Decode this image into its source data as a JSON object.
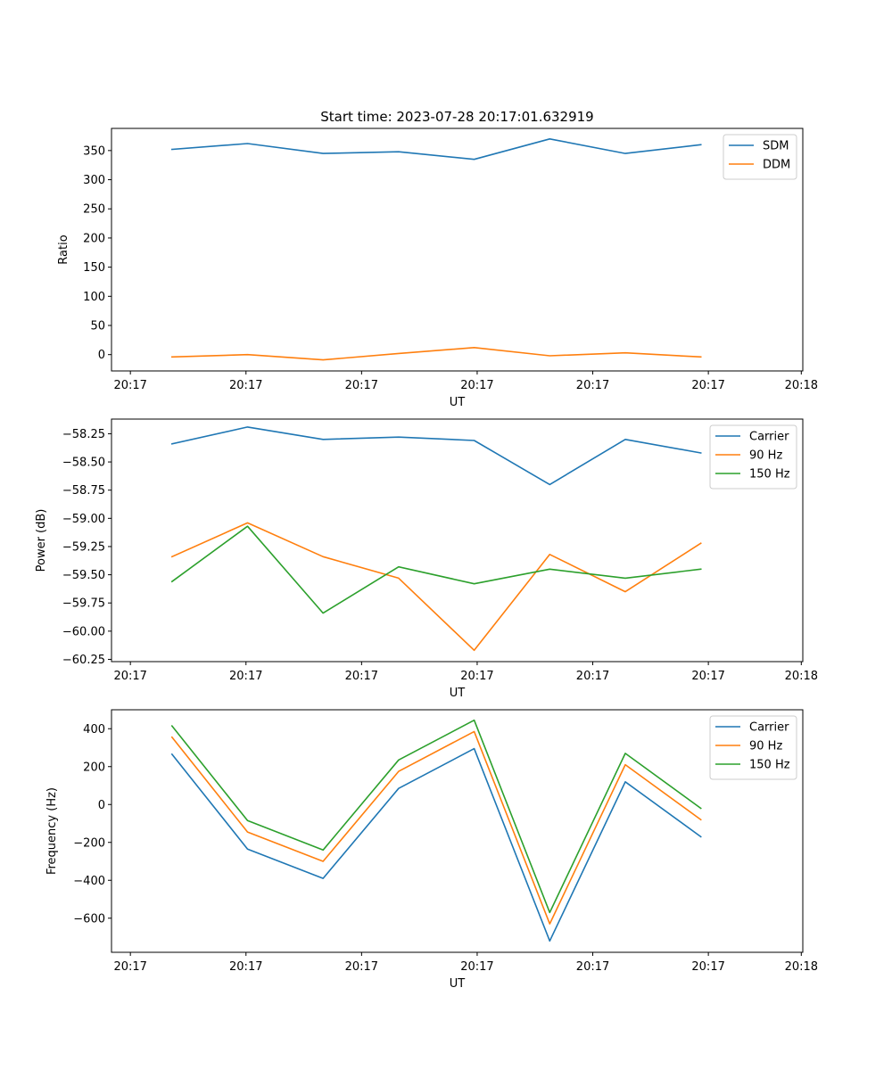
{
  "title": "Start time: 2023-07-28 20:17:01.632919",
  "colors": {
    "blue": "#1f77b4",
    "orange": "#ff7f0e",
    "green": "#2ca02c"
  },
  "chart_data": [
    {
      "type": "line",
      "title": "Start time: 2023-07-28 20:17:01.632919",
      "xlabel": "UT",
      "ylabel": "Ratio",
      "x": [
        1,
        2,
        3,
        4,
        5,
        6,
        7,
        8
      ],
      "xlim": [
        0.2,
        9.35
      ],
      "ylim": [
        -28,
        388
      ],
      "yticks": [
        0,
        50,
        100,
        150,
        200,
        250,
        300,
        350
      ],
      "ytick_labels": [
        "0",
        "50",
        "100",
        "150",
        "200",
        "250",
        "300",
        "350"
      ],
      "xticks": [
        0.45,
        1.98,
        3.51,
        5.04,
        6.57,
        8.1,
        9.33
      ],
      "xtick_labels": [
        "20:17",
        "20:17",
        "20:17",
        "20:17",
        "20:17",
        "20:17",
        "20:18"
      ],
      "legend": "top-right",
      "series": [
        {
          "name": "SDM",
          "color": "#1f77b4",
          "values": [
            352,
            362,
            345,
            348,
            335,
            370,
            345,
            360
          ]
        },
        {
          "name": "DDM",
          "color": "#ff7f0e",
          "values": [
            -4,
            0,
            -9,
            2,
            12,
            -2,
            3,
            -4
          ]
        }
      ]
    },
    {
      "type": "line",
      "title": "",
      "xlabel": "UT",
      "ylabel": "Power (dB)",
      "x": [
        1,
        2,
        3,
        4,
        5,
        6,
        7,
        8
      ],
      "xlim": [
        0.2,
        9.35
      ],
      "ylim": [
        -60.27,
        -58.12
      ],
      "yticks": [
        -60.25,
        -60.0,
        -59.75,
        -59.5,
        -59.25,
        -59.0,
        -58.75,
        -58.5,
        -58.25
      ],
      "ytick_labels": [
        "−60.25",
        "−60.00",
        "−59.75",
        "−59.50",
        "−59.25",
        "−59.00",
        "−58.75",
        "−58.50",
        "−58.25"
      ],
      "xticks": [
        0.45,
        1.98,
        3.51,
        5.04,
        6.57,
        8.1,
        9.33
      ],
      "xtick_labels": [
        "20:17",
        "20:17",
        "20:17",
        "20:17",
        "20:17",
        "20:17",
        "20:18"
      ],
      "legend": "top-right",
      "series": [
        {
          "name": "Carrier",
          "color": "#1f77b4",
          "values": [
            -58.34,
            -58.19,
            -58.3,
            -58.28,
            -58.31,
            -58.7,
            -58.3,
            -58.42
          ]
        },
        {
          "name": "90 Hz",
          "color": "#ff7f0e",
          "values": [
            -59.34,
            -59.04,
            -59.34,
            -59.53,
            -60.17,
            -59.32,
            -59.65,
            -59.22
          ]
        },
        {
          "name": "150 Hz",
          "color": "#2ca02c",
          "values": [
            -59.56,
            -59.07,
            -59.84,
            -59.43,
            -59.58,
            -59.45,
            -59.53,
            -59.45
          ]
        }
      ]
    },
    {
      "type": "line",
      "title": "",
      "xlabel": "UT",
      "ylabel": "Frequency (Hz)",
      "x": [
        1,
        2,
        3,
        4,
        5,
        6,
        7,
        8
      ],
      "xlim": [
        0.2,
        9.35
      ],
      "ylim": [
        -780,
        500
      ],
      "yticks": [
        -600,
        -400,
        -200,
        0,
        200,
        400
      ],
      "ytick_labels": [
        "−600",
        "−400",
        "−200",
        "0",
        "200",
        "400"
      ],
      "xticks": [
        0.45,
        1.98,
        3.51,
        5.04,
        6.57,
        8.1,
        9.33
      ],
      "xtick_labels": [
        "20:17",
        "20:17",
        "20:17",
        "20:17",
        "20:17",
        "20:17",
        "20:18"
      ],
      "legend": "top-right",
      "series": [
        {
          "name": "Carrier",
          "color": "#1f77b4",
          "values": [
            265,
            -235,
            -390,
            85,
            295,
            -720,
            120,
            -170
          ]
        },
        {
          "name": "90 Hz",
          "color": "#ff7f0e",
          "values": [
            355,
            -145,
            -300,
            175,
            385,
            -630,
            210,
            -80
          ]
        },
        {
          "name": "150 Hz",
          "color": "#2ca02c",
          "values": [
            415,
            -85,
            -240,
            235,
            445,
            -570,
            270,
            -20
          ]
        }
      ]
    }
  ]
}
